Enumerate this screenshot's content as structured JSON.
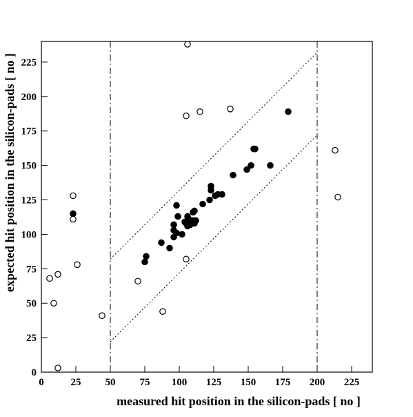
{
  "chart_data": {
    "type": "scatter",
    "title": "",
    "xlabel": "measured hit position in the silicon-pads [ no ]",
    "ylabel": "expected hit position in the silicon-pads [ no ]",
    "xlim": [
      0,
      240
    ],
    "ylim": [
      0,
      240
    ],
    "x_ticks": [
      0,
      25,
      50,
      75,
      100,
      125,
      150,
      175,
      200,
      225
    ],
    "y_ticks": [
      0,
      25,
      50,
      75,
      100,
      125,
      150,
      175,
      200,
      225
    ],
    "x_tick_labels": [
      "0",
      "25",
      "50",
      "75",
      "100",
      "125",
      "150",
      "175",
      "200",
      "225"
    ],
    "y_tick_labels": [
      "0",
      "25",
      "50",
      "75",
      "100",
      "125",
      "150",
      "175",
      "200",
      "225"
    ],
    "grid": false,
    "legend": "none",
    "colors": {
      "axis": "#000000",
      "marker": "#000000",
      "background": "#ffffff"
    },
    "series": [
      {
        "marker": "filled-circle",
        "points": [
          [
            23,
            115
          ],
          [
            75,
            80
          ],
          [
            76,
            84
          ],
          [
            87,
            94
          ],
          [
            93,
            90
          ],
          [
            96,
            98
          ],
          [
            96,
            103
          ],
          [
            96,
            107
          ],
          [
            98,
            121
          ],
          [
            98,
            101
          ],
          [
            99,
            113
          ],
          [
            102,
            100
          ],
          [
            104,
            109
          ],
          [
            105,
            108
          ],
          [
            106,
            113
          ],
          [
            106,
            106
          ],
          [
            107,
            111
          ],
          [
            108,
            107
          ],
          [
            110,
            110
          ],
          [
            110,
            116
          ],
          [
            111,
            108
          ],
          [
            111,
            117
          ],
          [
            112,
            110
          ],
          [
            117,
            122
          ],
          [
            122,
            125
          ],
          [
            123,
            135
          ],
          [
            123,
            132
          ],
          [
            126,
            128
          ],
          [
            128,
            129
          ],
          [
            131,
            129
          ],
          [
            139,
            143
          ],
          [
            149,
            147
          ],
          [
            152,
            150
          ],
          [
            154,
            162
          ],
          [
            155,
            162
          ],
          [
            166,
            150
          ],
          [
            179,
            189
          ]
        ]
      },
      {
        "marker": "open-circle",
        "points": [
          [
            106,
            238
          ],
          [
            105,
            186
          ],
          [
            115,
            189
          ],
          [
            137,
            191
          ],
          [
            213,
            161
          ],
          [
            215,
            127
          ],
          [
            23,
            128
          ],
          [
            23,
            111
          ],
          [
            26,
            78
          ],
          [
            6,
            68
          ],
          [
            12,
            71
          ],
          [
            9,
            50
          ],
          [
            44,
            41
          ],
          [
            70,
            66
          ],
          [
            88,
            44
          ],
          [
            105,
            82
          ],
          [
            12,
            3
          ]
        ]
      }
    ],
    "reference_lines": [
      {
        "style": "dash-dot",
        "orientation": "vertical",
        "x": 50
      },
      {
        "style": "dash-dot",
        "orientation": "vertical",
        "x": 200
      },
      {
        "style": "dotted",
        "from": [
          50,
          82
        ],
        "to": [
          200,
          232
        ]
      },
      {
        "style": "dotted",
        "from": [
          50,
          22
        ],
        "to": [
          200,
          172
        ]
      }
    ]
  }
}
